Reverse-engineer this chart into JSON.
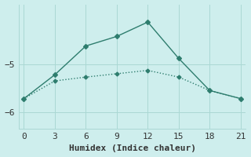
{
  "line1_x": [
    0,
    3,
    6,
    9,
    12,
    15,
    18,
    21
  ],
  "line1_y": [
    -5.72,
    -5.22,
    -4.62,
    -4.42,
    -4.12,
    -4.88,
    -5.55,
    -5.72
  ],
  "line2_x": [
    0,
    3,
    6,
    9,
    12,
    15,
    18,
    21
  ],
  "line2_y": [
    -5.72,
    -5.35,
    -5.27,
    -5.2,
    -5.13,
    -5.27,
    -5.55,
    -5.72
  ],
  "color": "#2e7d6e",
  "bg_color": "#ceeeed",
  "xlabel": "Humidex (Indice chaleur)",
  "xlim": [
    -0.5,
    21.5
  ],
  "ylim": [
    -6.35,
    -3.75
  ],
  "xticks": [
    0,
    3,
    6,
    9,
    12,
    15,
    18,
    21
  ],
  "yticks": [
    -6,
    -5
  ],
  "xlabel_fontsize": 8,
  "tick_fontsize": 8
}
